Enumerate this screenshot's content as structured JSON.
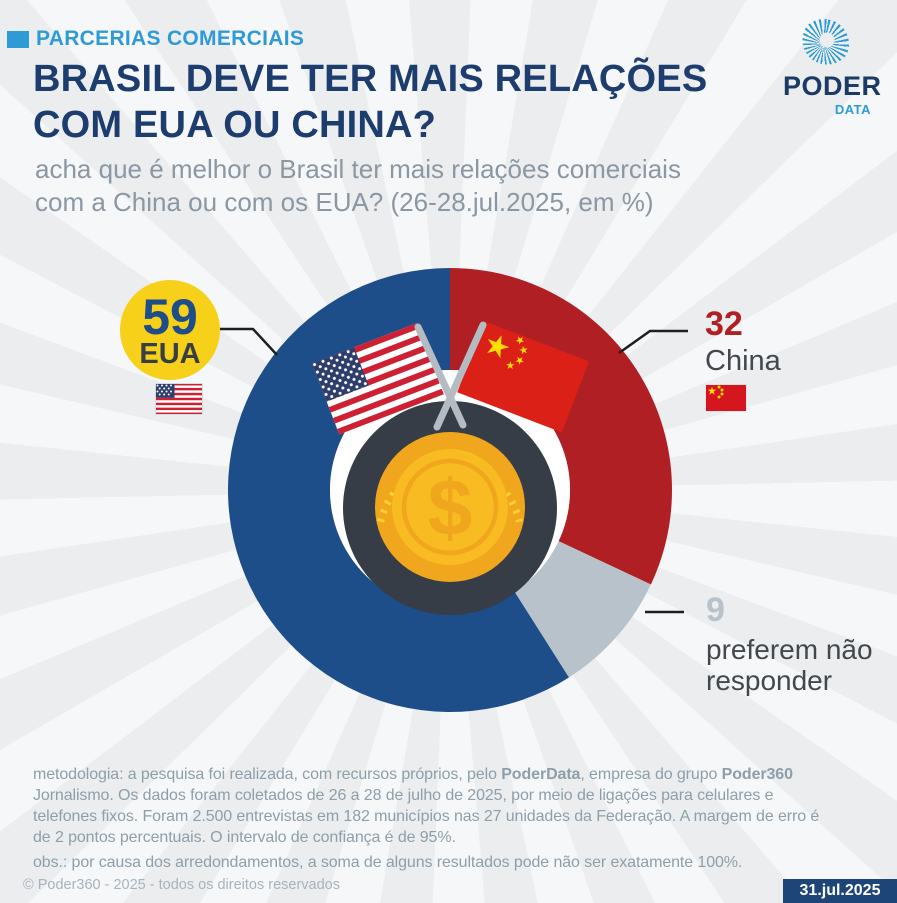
{
  "header": {
    "eyebrow": "PARCERIAS COMERCIAIS",
    "title_line1": "BRASIL DEVE TER MAIS RELAÇÕES",
    "title_line2": "COM EUA OU CHINA?",
    "subtitle_line1": "acha que é melhor o Brasil ter mais relações comerciais",
    "subtitle_line2": "com a China ou com os EUA? (26-28.jul.2025, em %)"
  },
  "logo": {
    "name": "PODER",
    "sub": "DATA",
    "icon": "poderdata-rays-icon"
  },
  "chart_data": {
    "type": "pie",
    "donut": true,
    "title": "BRASIL DEVE TER MAIS RELAÇÕES COM EUA OU CHINA?",
    "question": "acha que é melhor o Brasil ter mais relações comerciais com a China ou com os EUA?",
    "period": "26-28.jul.2025",
    "unit": "%",
    "categories": [
      "China",
      "preferem não responder",
      "EUA"
    ],
    "values": [
      32,
      9,
      59
    ],
    "colors": [
      "#B01F24",
      "#B7C2CA",
      "#1D4E89"
    ],
    "start_angle": "12 o'clock, clockwise",
    "center_icons": [
      "us-flag-icon",
      "china-flag-icon",
      "dollar-coin-icon"
    ]
  },
  "callouts": {
    "eua_label": "EUA",
    "china_label": "China",
    "none_line1": "preferem não",
    "none_line2": "responder"
  },
  "methodology": {
    "line1_pre": "metodologia: a pesquisa foi realizada, com recursos próprios, pelo ",
    "line1_bold1": "PoderData",
    "line1_mid": ", empresa do grupo ",
    "line1_bold2": "Poder360",
    "line2": "Jornalismo. Os dados foram coletados de 26 a 28 de julho de 2025, por meio de ligações para celulares e",
    "line3": "telefones fixos. Foram 2.500 entrevistas em 182 municípios nas 27 unidades da Federação. A margem de erro é",
    "line4": "de 2 pontos percentuais. O intervalo de confiança é de 95%."
  },
  "obs": "obs.: por causa dos arredondamentos, a soma de alguns resultados pode não ser exatamente 100%.",
  "footer": {
    "copyright": "© Poder360 - 2025 - todos os direitos reservados",
    "date_badge": "31.jul.2025"
  },
  "colors": {
    "accent_blue": "#2E9BD6",
    "title_navy": "#1C3D6E",
    "slice_blue": "#1D4E89",
    "slice_red": "#B01F24",
    "slice_gray": "#B7C2CA",
    "highlight_yellow": "#F6D019",
    "coin_gold": "#F0A61D",
    "badge_navy": "#1D4577"
  }
}
